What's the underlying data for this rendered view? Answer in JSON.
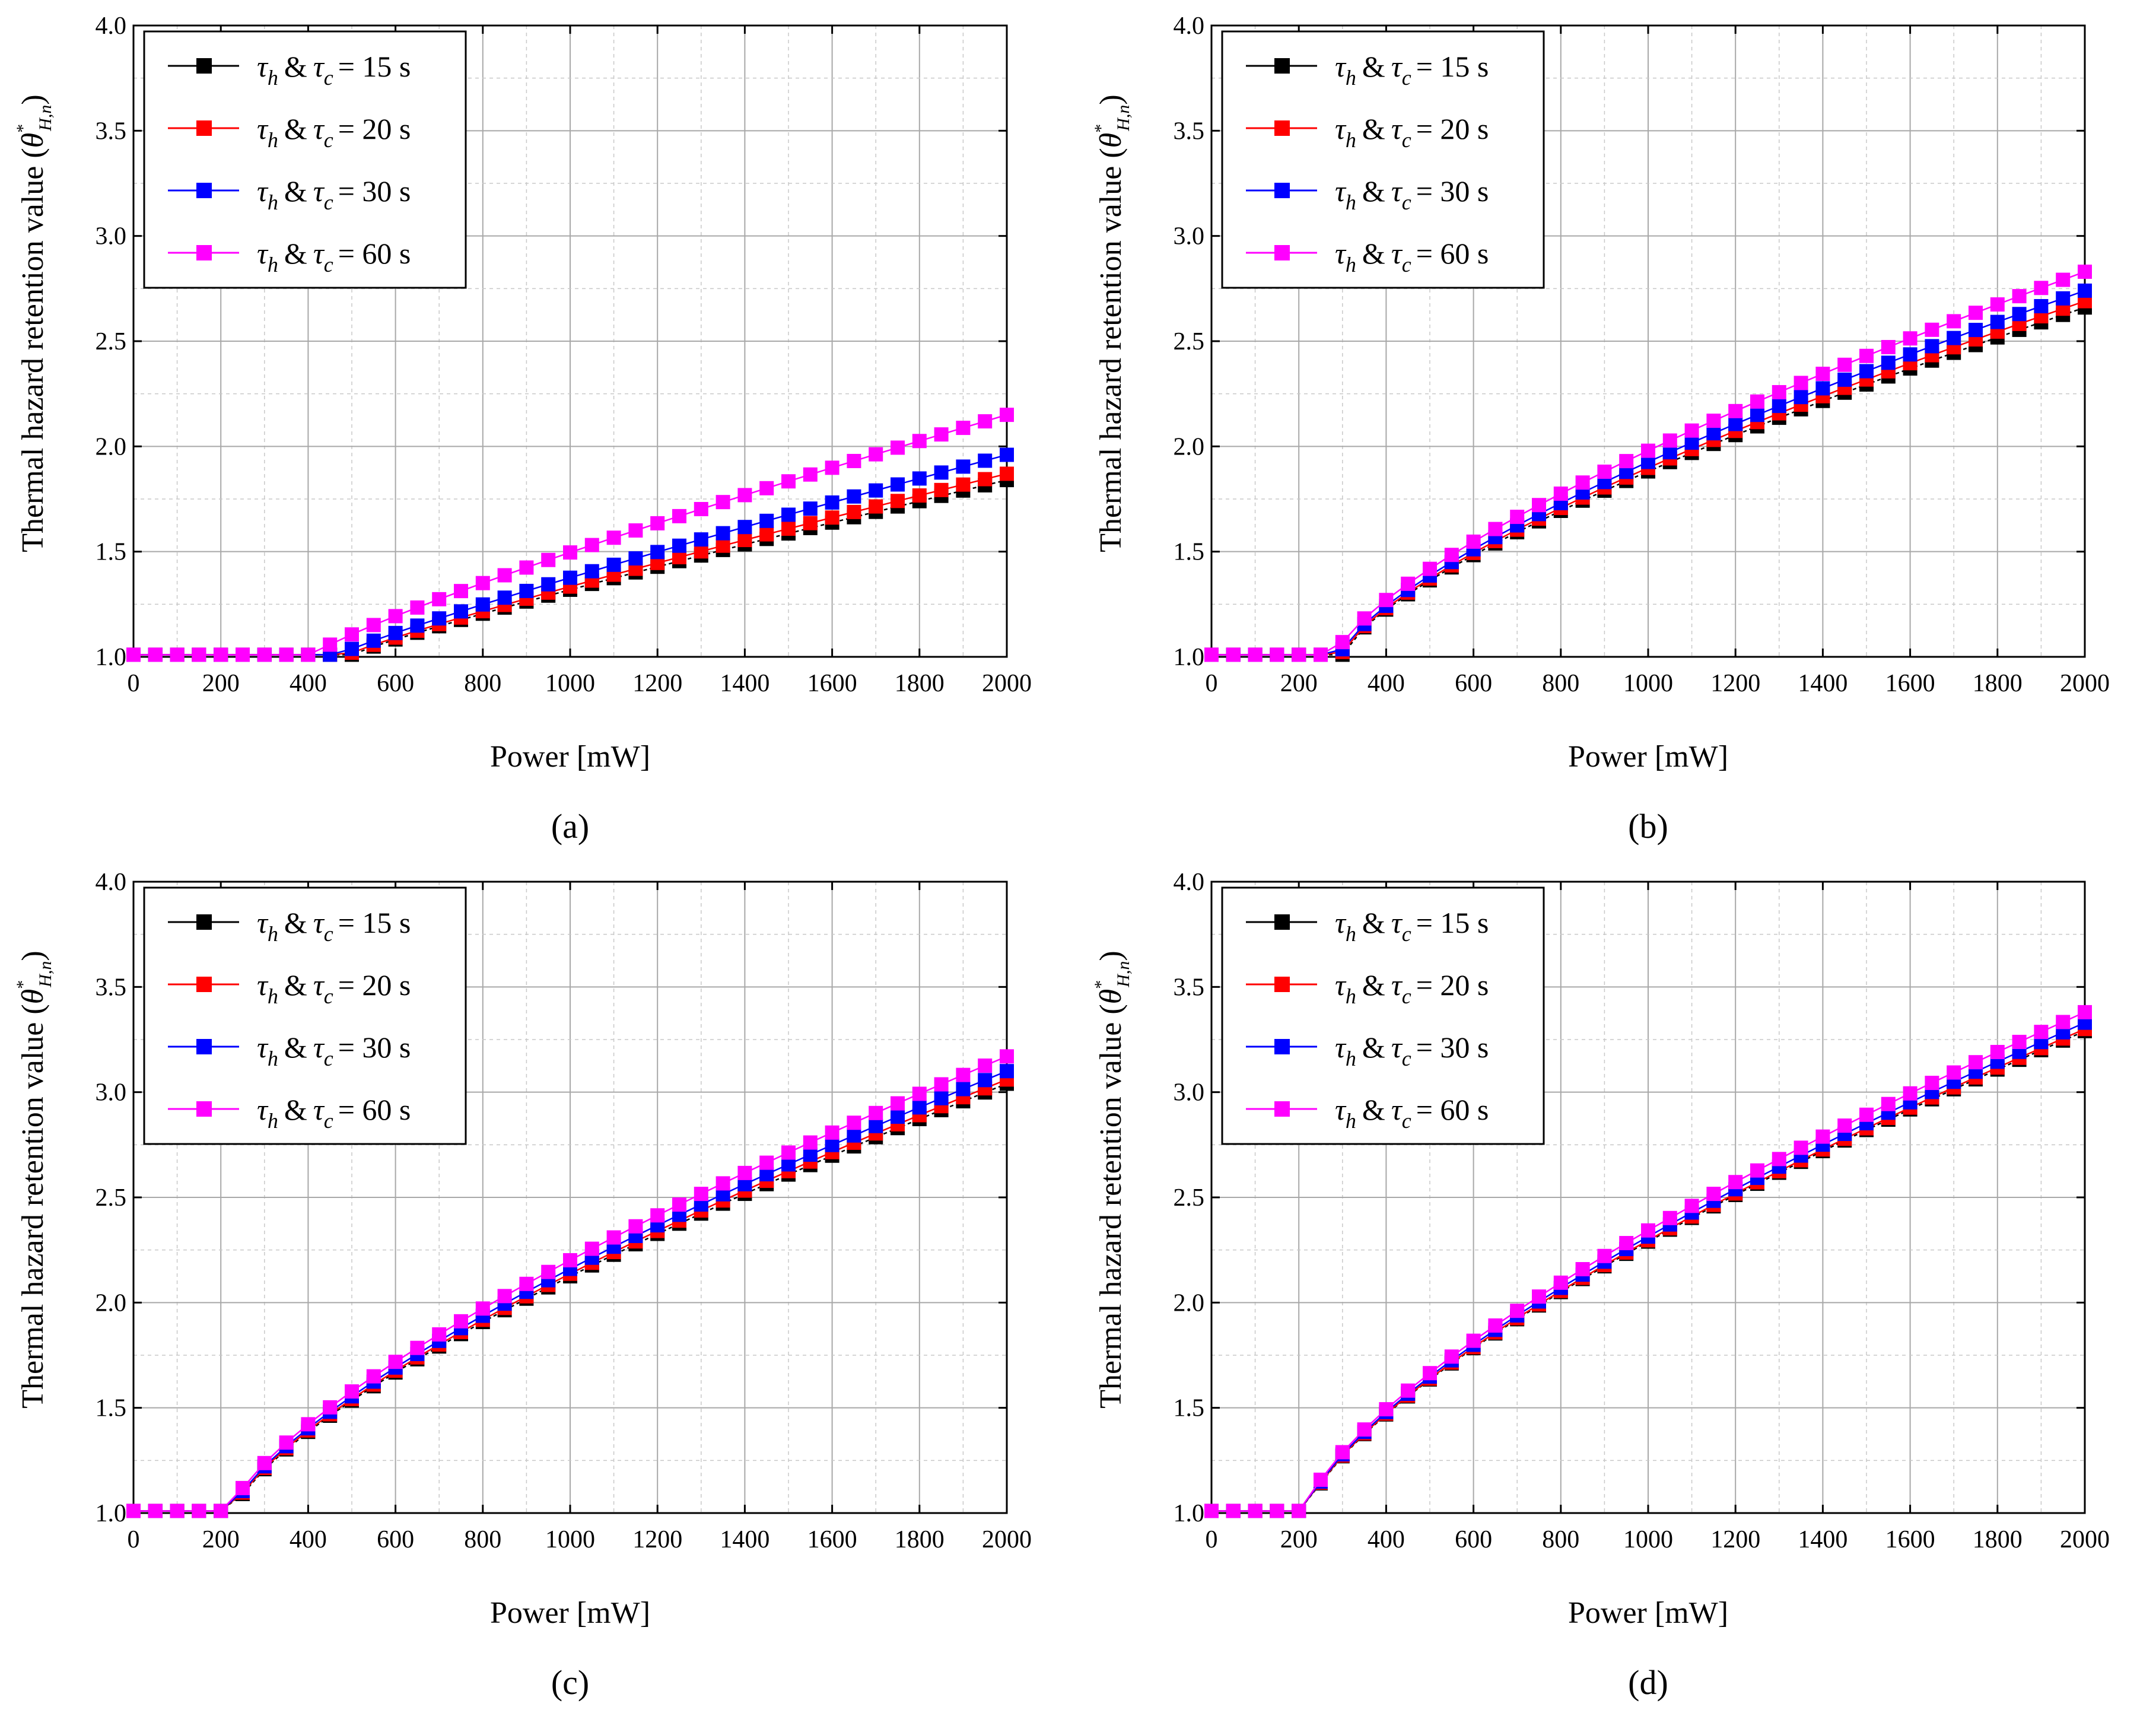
{
  "figure": {
    "panels": [
      "(a)",
      "(b)",
      "(c)",
      "(d)"
    ],
    "ylabel_main": "Thermal hazard retention value (",
    "ylabel_symbol": "θ",
    "ylabel_sup": "*",
    "ylabel_sub": "H,n",
    "ylabel_close": ")",
    "legend_amp": "&",
    "legend_tau": "τ",
    "legend_sub_h": "h",
    "legend_sub_c": "c",
    "legend_values": [
      "= 15 s",
      "= 20 s",
      "= 30 s",
      "= 60 s"
    ]
  },
  "colors": {
    "series_1": "#000000",
    "series_2": "#ff0000",
    "series_3": "#0000ff",
    "series_4": "#ff00ff",
    "grid": "#a8a8a8"
  },
  "chart_data": [
    {
      "type": "line",
      "panel": "(a)",
      "xlabel": "Power [mW]",
      "ylabel": "Thermal hazard retention value (θ*H,n)",
      "xlim": [
        0,
        2000
      ],
      "ylim": [
        1.0,
        4.0
      ],
      "xticks": [
        "0",
        "200",
        "400",
        "600",
        "800",
        "1000",
        "1200",
        "1400",
        "1600",
        "1800",
        "2000"
      ],
      "yticks": [
        "1.0",
        "1.5",
        "2.0",
        "2.5",
        "3.0",
        "3.5",
        "4.0"
      ],
      "grid": true,
      "legend_position": "top-left",
      "series": [
        {
          "name": "τh & τc = 15 s",
          "onset": 500,
          "end": 1.84,
          "exp": 0.9
        },
        {
          "name": "τh & τc = 20 s",
          "onset": 490,
          "end": 1.87,
          "exp": 0.9
        },
        {
          "name": "τh & τc = 30 s",
          "onset": 470,
          "end": 1.96,
          "exp": 0.9
        },
        {
          "name": "τh & τc = 60 s",
          "onset": 410,
          "end": 2.15,
          "exp": 0.86
        }
      ]
    },
    {
      "type": "line",
      "panel": "(b)",
      "xlabel": "Power [mW]",
      "ylabel": "Thermal hazard retention value (θ*H,n)",
      "xlim": [
        0,
        2000
      ],
      "ylim": [
        1.0,
        4.0
      ],
      "xticks": [
        "0",
        "200",
        "400",
        "600",
        "800",
        "1000",
        "1200",
        "1400",
        "1600",
        "1800",
        "2000"
      ],
      "yticks": [
        "1.0",
        "1.5",
        "2.0",
        "2.5",
        "3.0",
        "3.5",
        "4.0"
      ],
      "grid": true,
      "legend_position": "top-left",
      "series": [
        {
          "name": "τh & τc = 15 s",
          "onset": 300,
          "end": 2.66,
          "exp": 0.72
        },
        {
          "name": "τh & τc = 20 s",
          "onset": 298,
          "end": 2.69,
          "exp": 0.72
        },
        {
          "name": "τh & τc = 30 s",
          "onset": 295,
          "end": 2.74,
          "exp": 0.72
        },
        {
          "name": "τh & τc = 60 s",
          "onset": 285,
          "end": 2.83,
          "exp": 0.72
        }
      ]
    },
    {
      "type": "line",
      "panel": "(c)",
      "xlabel": "Power [mW]",
      "ylabel": "Thermal hazard retention value (θ*H,n)",
      "xlim": [
        0,
        2000
      ],
      "ylim": [
        1.0,
        4.0
      ],
      "xticks": [
        "0",
        "200",
        "400",
        "600",
        "800",
        "1000",
        "1200",
        "1400",
        "1600",
        "1800",
        "2000"
      ],
      "yticks": [
        "1.0",
        "1.5",
        "2.0",
        "2.5",
        "3.0",
        "3.5",
        "4.0"
      ],
      "grid": true,
      "legend_position": "top-left",
      "series": [
        {
          "name": "τh & τc = 15 s",
          "onset": 230,
          "end": 3.04,
          "exp": 0.72
        },
        {
          "name": "τh & τc = 20 s",
          "onset": 228,
          "end": 3.06,
          "exp": 0.72
        },
        {
          "name": "τh & τc = 30 s",
          "onset": 226,
          "end": 3.1,
          "exp": 0.72
        },
        {
          "name": "τh & τc = 60 s",
          "onset": 222,
          "end": 3.17,
          "exp": 0.72
        }
      ]
    },
    {
      "type": "line",
      "panel": "(d)",
      "xlabel": "Power [mW]",
      "ylabel": "Thermal hazard retention value (θ*H,n)",
      "xlim": [
        0,
        2000
      ],
      "ylim": [
        1.0,
        4.0
      ],
      "xticks": [
        "0",
        "200",
        "400",
        "600",
        "800",
        "1000",
        "1200",
        "1400",
        "1600",
        "1800",
        "2000"
      ],
      "yticks": [
        "1.0",
        "1.5",
        "2.0",
        "2.5",
        "3.0",
        "3.5",
        "4.0"
      ],
      "grid": true,
      "legend_position": "top-left",
      "series": [
        {
          "name": "τh & τc = 15 s",
          "onset": 220,
          "end": 3.29,
          "exp": 0.7
        },
        {
          "name": "τh & τc = 20 s",
          "onset": 219,
          "end": 3.3,
          "exp": 0.7
        },
        {
          "name": "τh & τc = 30 s",
          "onset": 218,
          "end": 3.33,
          "exp": 0.7
        },
        {
          "name": "τh & τc = 60 s",
          "onset": 216,
          "end": 3.38,
          "exp": 0.7
        }
      ]
    }
  ]
}
